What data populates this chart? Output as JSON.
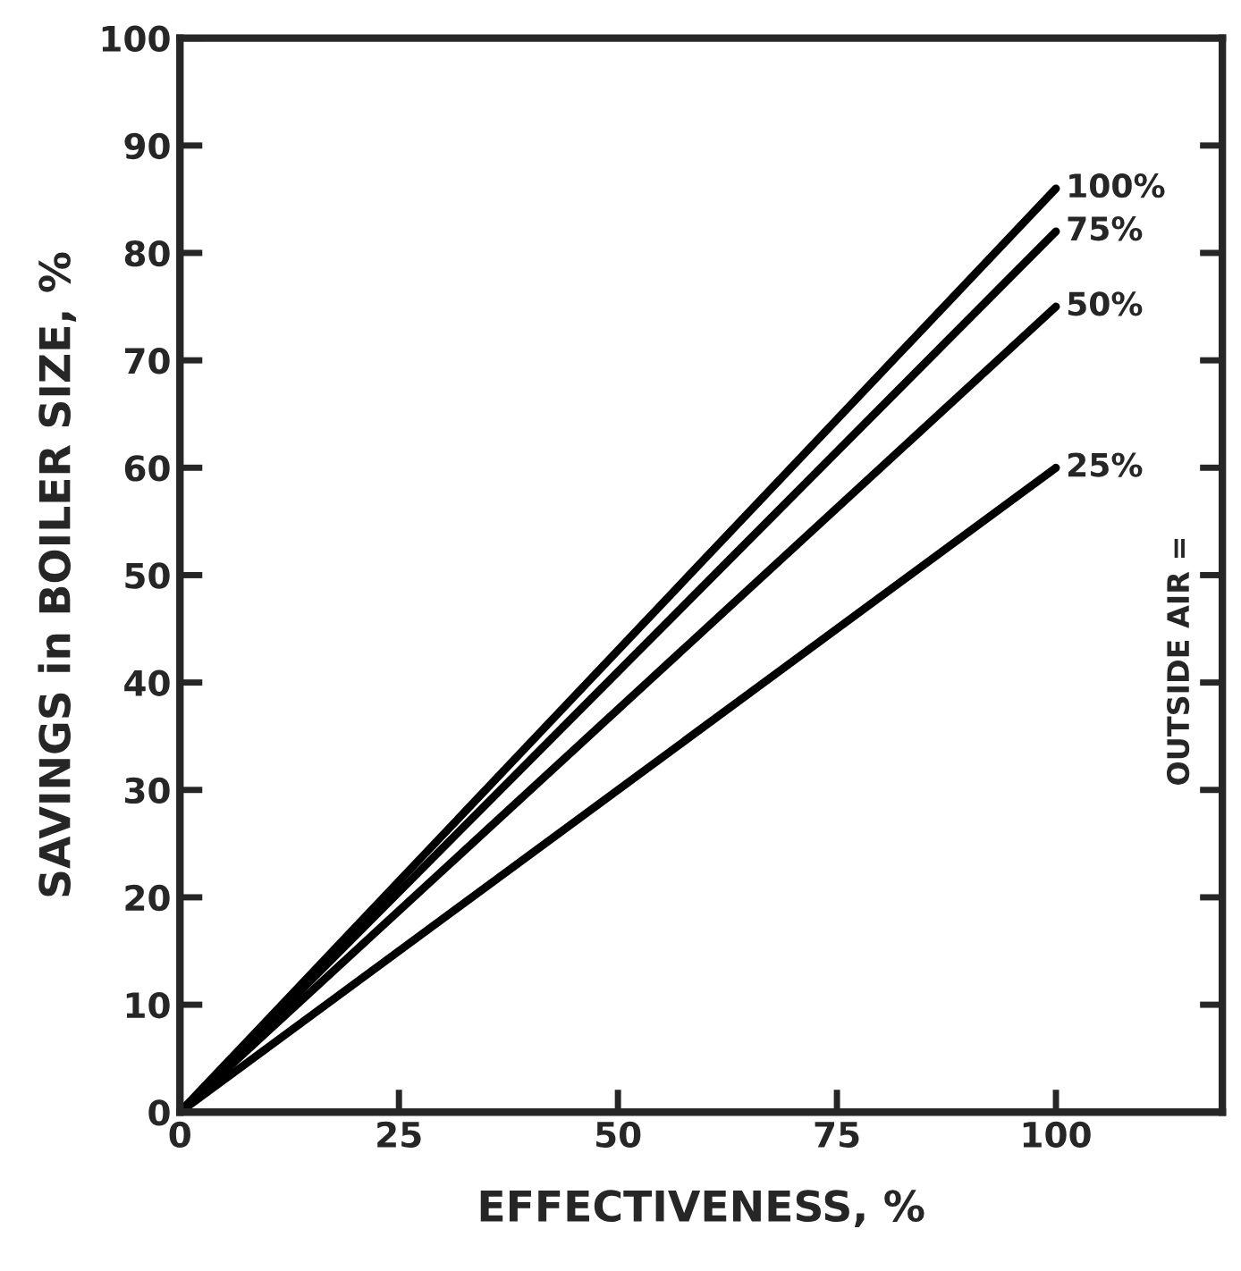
{
  "chart_data": {
    "type": "line",
    "xlabel": "EFFECTIVENESS, %",
    "ylabel": "SAVINGS in BOILER SIZE, %",
    "x": [
      0,
      100
    ],
    "series": [
      {
        "name": "100%",
        "color": "#000000",
        "values": [
          0,
          86
        ]
      },
      {
        "name": "75%",
        "color": "#000000",
        "values": [
          0,
          82
        ]
      },
      {
        "name": "50%",
        "color": "#000000",
        "values": [
          0,
          75
        ]
      },
      {
        "name": "25%",
        "color": "#000000",
        "values": [
          0,
          60
        ]
      }
    ],
    "annotations": [
      "OUTSIDE AIR ="
    ],
    "xlim": [
      0,
      119
    ],
    "xticks": [
      0,
      25,
      50,
      75,
      100
    ],
    "ylim": [
      0,
      100
    ],
    "yticks": [
      0,
      10,
      20,
      30,
      40,
      50,
      60,
      70,
      80,
      90,
      100
    ],
    "grid": false,
    "legend": false,
    "marker": "none",
    "line_style": "solid"
  }
}
